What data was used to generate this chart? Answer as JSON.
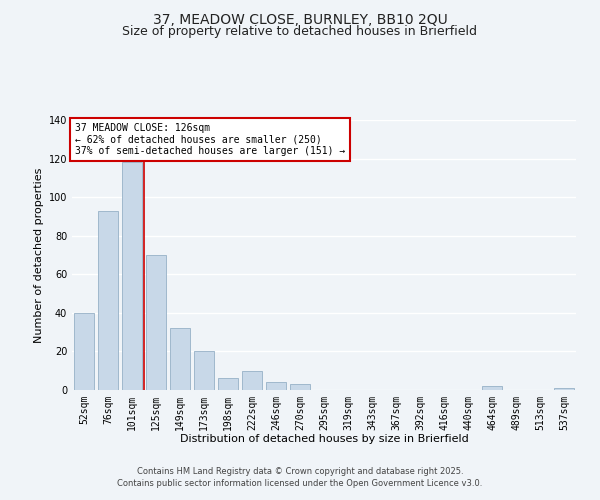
{
  "title_line1": "37, MEADOW CLOSE, BURNLEY, BB10 2QU",
  "title_line2": "Size of property relative to detached houses in Brierfield",
  "bar_labels": [
    "52sqm",
    "76sqm",
    "101sqm",
    "125sqm",
    "149sqm",
    "173sqm",
    "198sqm",
    "222sqm",
    "246sqm",
    "270sqm",
    "295sqm",
    "319sqm",
    "343sqm",
    "367sqm",
    "392sqm",
    "416sqm",
    "440sqm",
    "464sqm",
    "489sqm",
    "513sqm",
    "537sqm"
  ],
  "bar_values": [
    40,
    93,
    118,
    70,
    32,
    20,
    6,
    10,
    4,
    3,
    0,
    0,
    0,
    0,
    0,
    0,
    0,
    2,
    0,
    0,
    1
  ],
  "bar_color": "#c8d8e8",
  "bar_edge_color": "#a0b8cc",
  "vline_color": "#cc0000",
  "xlabel": "Distribution of detached houses by size in Brierfield",
  "ylabel": "Number of detached properties",
  "ylim": [
    0,
    140
  ],
  "yticks": [
    0,
    20,
    40,
    60,
    80,
    100,
    120,
    140
  ],
  "annotation_title": "37 MEADOW CLOSE: 126sqm",
  "annotation_line2": "← 62% of detached houses are smaller (250)",
  "annotation_line3": "37% of semi-detached houses are larger (151) →",
  "annotation_box_color": "#ffffff",
  "annotation_box_edge": "#cc0000",
  "footer_line1": "Contains HM Land Registry data © Crown copyright and database right 2025.",
  "footer_line2": "Contains public sector information licensed under the Open Government Licence v3.0.",
  "background_color": "#f0f4f8",
  "grid_color": "#ffffff",
  "title_fontsize": 10,
  "subtitle_fontsize": 9,
  "axis_label_fontsize": 8,
  "tick_fontsize": 7,
  "annotation_fontsize": 7,
  "footer_fontsize": 6
}
